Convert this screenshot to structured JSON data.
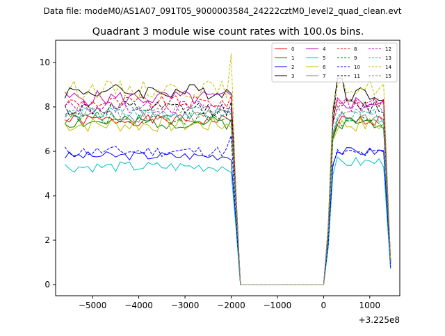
{
  "figure": {
    "suptitle": "Data file: modeM0/AS1A07_091T05_9000003584_24222cztM0_level2_quad_clean.evt"
  },
  "chart_data": {
    "type": "line",
    "title": "Quadrant 3 module wise count rates with 100.0s bins.",
    "xlabel": "",
    "ylabel": "",
    "x_offset_label": "+3.225e8",
    "xlim": [
      -5800,
      1650
    ],
    "ylim": [
      -0.5,
      11.0
    ],
    "xticks": [
      -5000,
      -4000,
      -3000,
      -2000,
      -1000,
      0,
      1000
    ],
    "xtick_labels": [
      "−5000",
      "−4000",
      "−3000",
      "−2000",
      "−1000",
      "0",
      "1000"
    ],
    "yticks": [
      0,
      2,
      4,
      6,
      8,
      10
    ],
    "ytick_labels": [
      "0",
      "2",
      "4",
      "6",
      "8",
      "10"
    ],
    "grid": false,
    "legend_position": "top-right",
    "segments": [
      {
        "x_start": -5600,
        "x_end": -2000,
        "step": 100
      },
      {
        "x_start": -1900,
        "x_end": 0,
        "step": 100
      },
      {
        "x_start": 100,
        "x_end": 1450,
        "step": 100
      }
    ],
    "series": [
      {
        "name": "0",
        "color": "#ff0000",
        "style": "solid",
        "base_left": 7.4,
        "base_right": 7.4,
        "amp": 0.25,
        "seed": 1
      },
      {
        "name": "1",
        "color": "#008000",
        "style": "solid",
        "base_left": 7.3,
        "base_right": 7.3,
        "amp": 0.3,
        "seed": 2
      },
      {
        "name": "2",
        "color": "#0000ff",
        "style": "solid",
        "base_left": 5.8,
        "base_right": 6.0,
        "amp": 0.2,
        "seed": 3
      },
      {
        "name": "3",
        "color": "#000000",
        "style": "solid",
        "base_left": 8.7,
        "base_right": 8.6,
        "amp": 0.35,
        "seed": 4
      },
      {
        "name": "4",
        "color": "#bf00bf",
        "style": "solid",
        "base_left": 8.4,
        "base_right": 8.2,
        "amp": 0.35,
        "seed": 5
      },
      {
        "name": "5",
        "color": "#00bfbf",
        "style": "solid",
        "base_left": 5.3,
        "base_right": 5.5,
        "amp": 0.25,
        "seed": 6
      },
      {
        "name": "6",
        "color": "#bfbf00",
        "style": "solid",
        "base_left": 7.2,
        "base_right": 7.2,
        "amp": 0.35,
        "seed": 7
      },
      {
        "name": "7",
        "color": "#808080",
        "style": "solid",
        "base_left": 7.6,
        "base_right": 7.5,
        "amp": 0.3,
        "seed": 8
      },
      {
        "name": "8",
        "color": "#ff0000",
        "style": "dashed",
        "base_left": 8.2,
        "base_right": 8.3,
        "amp": 0.3,
        "seed": 9
      },
      {
        "name": "9",
        "color": "#008000",
        "style": "dashed",
        "base_left": 7.5,
        "base_right": 7.3,
        "amp": 0.3,
        "seed": 10
      },
      {
        "name": "10",
        "color": "#0000ff",
        "style": "dashed",
        "base_left": 6.0,
        "base_right": 5.9,
        "amp": 0.25,
        "seed": 11
      },
      {
        "name": "11",
        "color": "#000000",
        "style": "dashed",
        "base_left": 7.9,
        "base_right": 8.0,
        "amp": 0.35,
        "seed": 12
      },
      {
        "name": "12",
        "color": "#bf00bf",
        "style": "dashed",
        "base_left": 8.0,
        "base_right": 8.1,
        "amp": 0.3,
        "seed": 13
      },
      {
        "name": "13",
        "color": "#00bfbf",
        "style": "dashed",
        "base_left": 7.7,
        "base_right": 7.6,
        "amp": 0.3,
        "seed": 14
      },
      {
        "name": "14",
        "color": "#bfbf00",
        "style": "dashed",
        "base_left": 8.8,
        "base_right": 8.9,
        "amp": 0.4,
        "seed": 15
      },
      {
        "name": "15",
        "color": "#808080",
        "style": "dashed",
        "base_left": 7.8,
        "base_right": 7.9,
        "amp": 0.3,
        "seed": 16
      }
    ]
  }
}
